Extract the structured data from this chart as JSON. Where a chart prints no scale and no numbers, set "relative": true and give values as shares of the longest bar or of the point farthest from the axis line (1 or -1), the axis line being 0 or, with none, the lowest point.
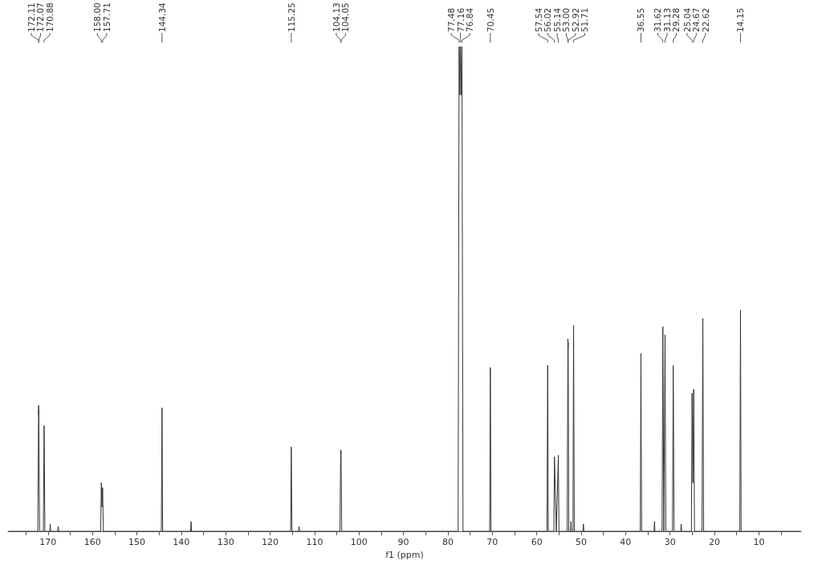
{
  "chart_data": {
    "type": "line",
    "relative": true,
    "xlabel": "f1 (ppm)",
    "marker": "none",
    "grid": false,
    "xlim": [
      179,
      0.5
    ],
    "xticks": [
      {
        "value": 175,
        "label": null
      },
      170,
      {
        "value": 165,
        "label": null
      },
      160,
      {
        "value": 155,
        "label": null
      },
      150,
      {
        "value": 145,
        "label": null
      },
      140,
      {
        "value": 135,
        "label": null
      },
      130,
      {
        "value": 125,
        "label": null
      },
      120,
      {
        "value": 115,
        "label": null
      },
      110,
      {
        "value": 105,
        "label": null
      },
      100,
      {
        "value": 95,
        "label": null
      },
      90,
      {
        "value": 85,
        "label": null
      },
      80,
      {
        "value": 75,
        "label": null
      },
      70,
      {
        "value": 65,
        "label": null
      },
      60,
      {
        "value": 55,
        "label": null
      },
      50,
      {
        "value": 45,
        "label": null
      },
      40,
      {
        "value": 35,
        "label": null
      },
      30,
      {
        "value": 25,
        "label": null
      },
      20,
      {
        "value": 15,
        "label": null
      },
      10,
      {
        "value": 5,
        "label": null
      }
    ],
    "series": [
      {
        "color": "#333333",
        "x": [
          178.9,
          172.3,
          172.11,
          172.09,
          172.07,
          171.9,
          171.05,
          170.88,
          170.7,
          169.6,
          169.5,
          169.4,
          167.8,
          167.7,
          167.6,
          158.15,
          158.0,
          157.85,
          157.71,
          157.55,
          144.5,
          144.34,
          144.2,
          137.9,
          137.8,
          137.7,
          115.4,
          115.25,
          115.1,
          113.6,
          113.5,
          113.4,
          104.3,
          104.13,
          104.09,
          104.05,
          103.9,
          77.7,
          77.48,
          77.32,
          77.16,
          77.0,
          76.84,
          76.6,
          70.6,
          70.45,
          70.3,
          57.7,
          57.54,
          57.4,
          56.15,
          56.02,
          55.6,
          55.14,
          55.0,
          53.15,
          53.0,
          52.96,
          52.92,
          52.8,
          52.4,
          52.3,
          52.2,
          51.85,
          51.71,
          51.55,
          49.6,
          49.5,
          49.4,
          36.7,
          36.55,
          36.4,
          33.6,
          33.5,
          33.4,
          31.8,
          31.62,
          31.4,
          31.13,
          30.95,
          29.45,
          29.28,
          29.1,
          27.6,
          27.5,
          27.4,
          25.2,
          25.04,
          24.85,
          24.67,
          24.5,
          22.8,
          22.62,
          22.45,
          14.3,
          14.15,
          14.0,
          0.6
        ],
        "values": [
          0,
          0,
          0.26,
          0.24,
          0.25,
          0,
          0,
          0.218,
          0,
          0,
          0.015,
          0,
          0,
          0.01,
          0,
          0,
          0.1,
          0.05,
          0.09,
          0,
          0,
          0.255,
          0,
          0,
          0.02,
          0,
          0,
          0.174,
          0,
          0,
          0.01,
          0,
          0,
          0.168,
          0.16,
          0.165,
          0,
          0,
          1,
          0.9,
          1,
          0.9,
          1,
          0,
          0,
          0.338,
          0,
          0,
          0.342,
          0,
          0,
          0.154,
          0,
          0.157,
          0,
          0,
          0.397,
          0.38,
          0.39,
          0,
          0,
          0.02,
          0,
          0,
          0.425,
          0,
          0,
          0.015,
          0,
          0,
          0.367,
          0,
          0,
          0.02,
          0,
          0,
          0.422,
          0,
          0.405,
          0,
          0,
          0.342,
          0,
          0,
          0.015,
          0,
          0,
          0.285,
          0.1,
          0.293,
          0,
          0,
          0.439,
          0,
          0,
          0.456,
          0,
          0
        ]
      }
    ],
    "annotations": [
      {
        "text": "172.11",
        "x": 172.11
      },
      {
        "text": "172.07",
        "x": 172.07
      },
      {
        "text": "170.88",
        "x": 170.88
      },
      {
        "text": "158.00",
        "x": 158.0
      },
      {
        "text": "157.71",
        "x": 157.71
      },
      {
        "text": "144.34",
        "x": 144.34
      },
      {
        "text": "115.25",
        "x": 115.25
      },
      {
        "text": "104.13",
        "x": 104.13
      },
      {
        "text": "104.05",
        "x": 104.05
      },
      {
        "text": "77.48",
        "x": 77.48
      },
      {
        "text": "77.16",
        "x": 77.16
      },
      {
        "text": "76.84",
        "x": 76.84
      },
      {
        "text": "70.45",
        "x": 70.45
      },
      {
        "text": "57.54",
        "x": 57.54
      },
      {
        "text": "56.02",
        "x": 56.02
      },
      {
        "text": "55.14",
        "x": 55.14
      },
      {
        "text": "53.00",
        "x": 53.0
      },
      {
        "text": "52.92",
        "x": 52.92
      },
      {
        "text": "51.71",
        "x": 51.71
      },
      {
        "text": "36.55",
        "x": 36.55
      },
      {
        "text": "31.62",
        "x": 31.62
      },
      {
        "text": "31.13",
        "x": 31.13
      },
      {
        "text": "29.28",
        "x": 29.28
      },
      {
        "text": "25.04",
        "x": 25.04
      },
      {
        "text": "24.67",
        "x": 24.67
      },
      {
        "text": "22.62",
        "x": 22.62
      },
      {
        "text": "14.15",
        "x": 14.15
      }
    ]
  }
}
